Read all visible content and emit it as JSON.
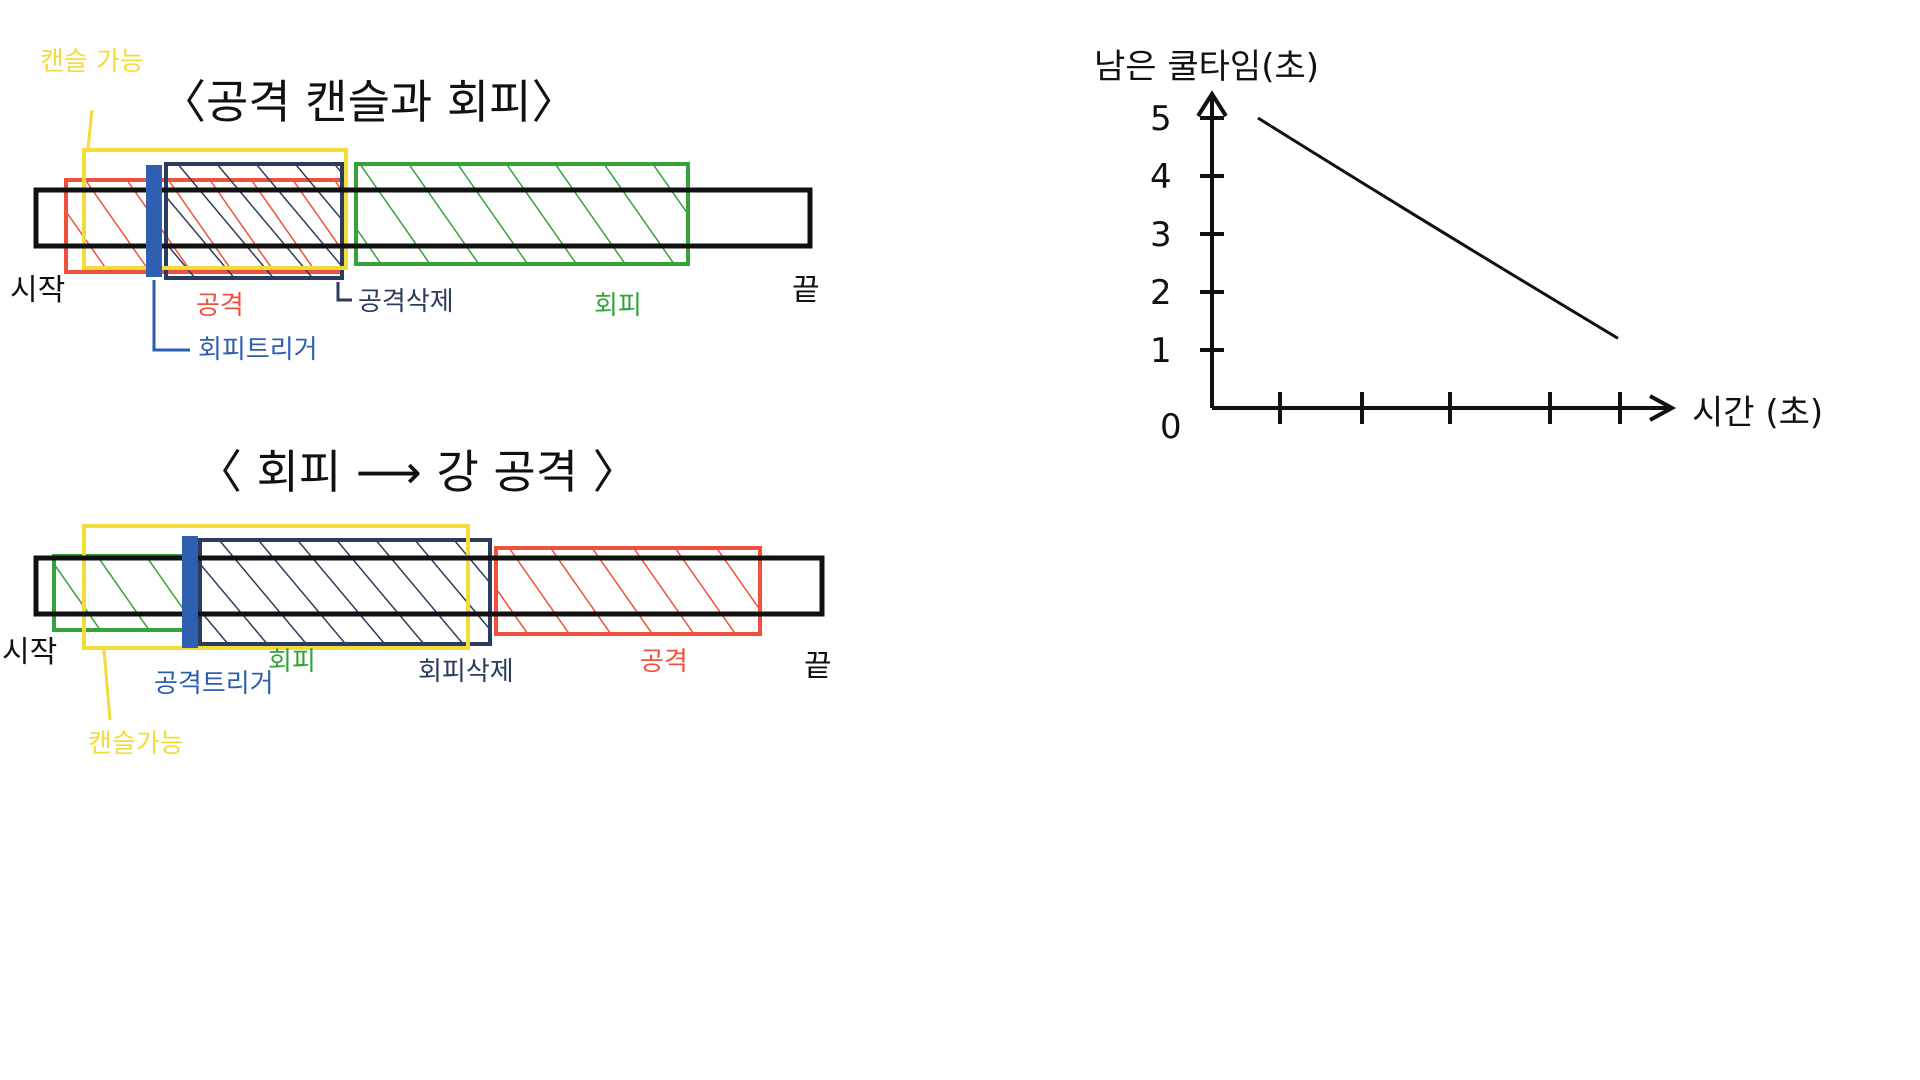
{
  "colors": {
    "ink": "#111111",
    "red": "#f0513c",
    "yellow": "#f3dc3a",
    "blue": "#2f5fb0",
    "navy": "#2b3c5e",
    "green": "#35a33a"
  },
  "diagram1": {
    "title": "〈공격 캔슬과  회피〉",
    "cancel_label": "캔슬 가능",
    "start_label": "시작",
    "end_label": "끝",
    "attack_label": "공격",
    "attack_delete_label": "공격삭제",
    "dodge_label": "회피",
    "dodge_trigger_label": "회피트리거"
  },
  "diagram2": {
    "title": "〈 회피 ⟶ 강 공격 〉",
    "start_label": "시작",
    "end_label": "끝",
    "attack_trigger_label": "공격트리거",
    "dodge_label": "회피",
    "dodge_delete_label": "회피삭제",
    "attack_label": "공격",
    "cancel_label": "캔슬가능"
  },
  "chart_data": {
    "type": "line",
    "ylabel": "남은 쿨타임(초)",
    "xlabel": "시간 (초)",
    "y_ticks": [
      "0",
      "1",
      "2",
      "3",
      "4",
      "5"
    ],
    "x_tick_count": 6,
    "series": [
      {
        "values": [
          5,
          1.2
        ]
      }
    ],
    "ylim": [
      0,
      5
    ]
  }
}
